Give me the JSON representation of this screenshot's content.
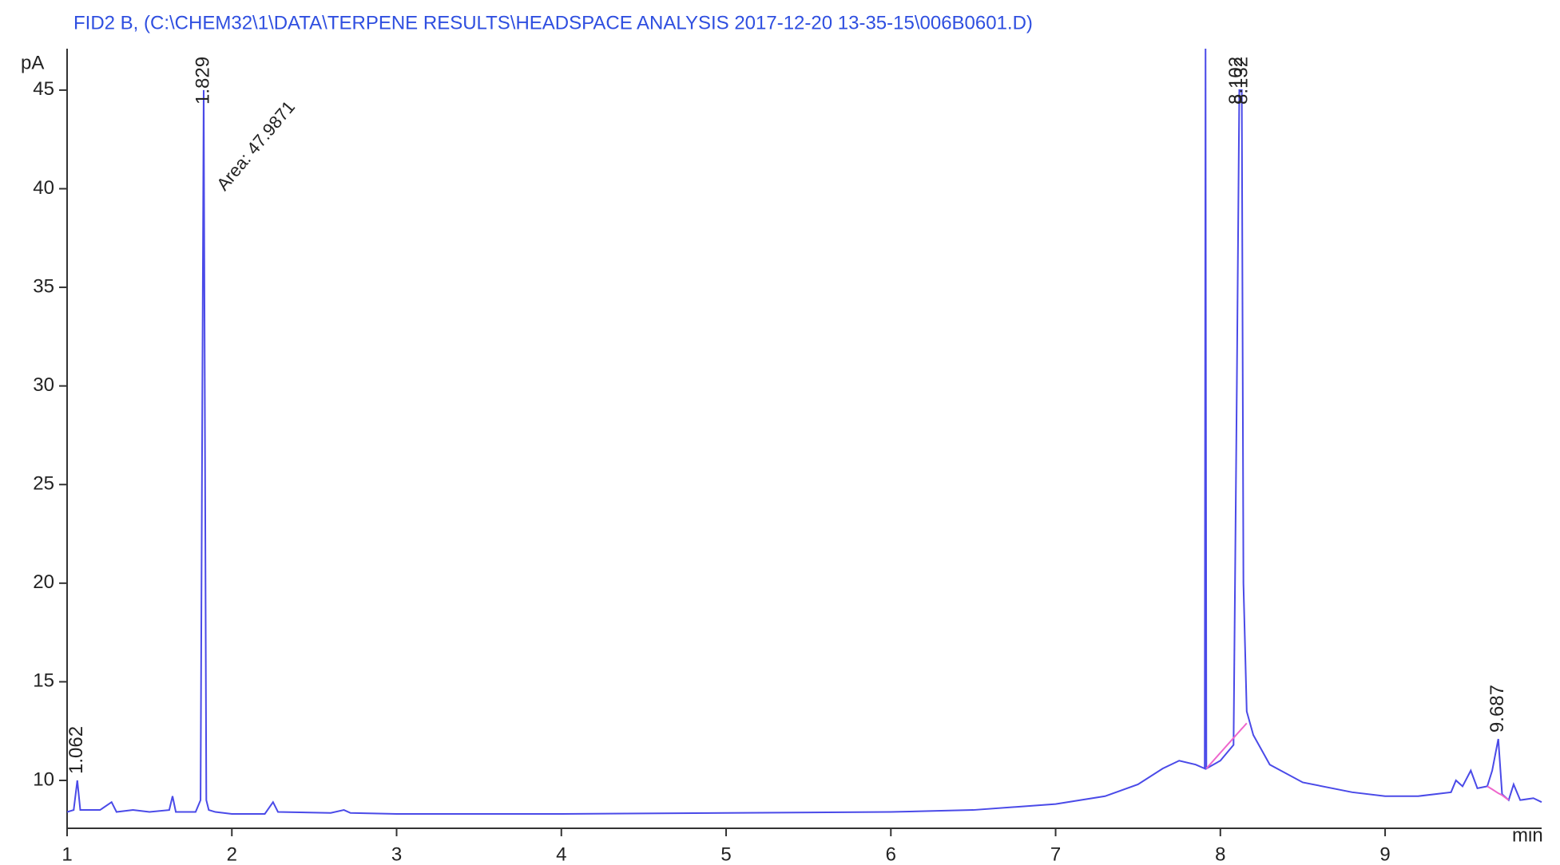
{
  "chart_data": {
    "type": "line",
    "title": "FID2 B,  (C:\\CHEM32\\1\\DATA\\TERPENE RESULTS\\HEADSPACE ANALYSIS 2017-12-20 13-35-15\\006B0601.D)",
    "ylabel": "pA",
    "xlabel": "min",
    "x": [
      1.0,
      1.04,
      1.062,
      1.08,
      1.2,
      1.27,
      1.3,
      1.4,
      1.5,
      1.62,
      1.64,
      1.66,
      1.78,
      1.81,
      1.829,
      1.845,
      1.86,
      1.9,
      2.0,
      2.2,
      2.25,
      2.28,
      2.6,
      2.68,
      2.72,
      3.0,
      4.0,
      5.0,
      6.0,
      6.5,
      7.0,
      7.3,
      7.5,
      7.65,
      7.75,
      7.85,
      7.905,
      7.91,
      7.915,
      8.0,
      8.08,
      8.1,
      8.115,
      8.13,
      8.14,
      8.16,
      8.2,
      8.3,
      8.5,
      8.8,
      9.0,
      9.2,
      9.4,
      9.43,
      9.47,
      9.52,
      9.56,
      9.62,
      9.65,
      9.687,
      9.71,
      9.75,
      9.78,
      9.82,
      9.9,
      9.95
    ],
    "series": [
      {
        "color": "#4a4ae8",
        "values": [
          8.4,
          8.5,
          10.0,
          8.5,
          8.5,
          8.9,
          8.4,
          8.5,
          8.4,
          8.5,
          9.2,
          8.4,
          8.4,
          9.0,
          45.0,
          9.0,
          8.5,
          8.4,
          8.3,
          8.3,
          8.9,
          8.4,
          8.35,
          8.5,
          8.35,
          8.3,
          8.3,
          8.35,
          8.4,
          8.5,
          8.8,
          9.2,
          9.8,
          10.6,
          11.0,
          10.8,
          10.6,
          47.1,
          10.6,
          11.0,
          11.8,
          30,
          45,
          45,
          20,
          13.5,
          12.3,
          10.8,
          9.9,
          9.4,
          9.2,
          9.2,
          9.4,
          10.0,
          9.7,
          10.5,
          9.6,
          9.7,
          10.5,
          12.1,
          9.3,
          9.0,
          9.8,
          9.0,
          9.1,
          8.9
        ]
      },
      {
        "color": "#ee66cc",
        "values": [
          null,
          null,
          null,
          null,
          null,
          null,
          null,
          null,
          null,
          null,
          null,
          null,
          null,
          null,
          null,
          null,
          null,
          null,
          null,
          null,
          null,
          null,
          null,
          null,
          null,
          null,
          null,
          null,
          null,
          null,
          null,
          null,
          null,
          null,
          null,
          null,
          null,
          null,
          10.6,
          11.4,
          12.15,
          12.34,
          12.48,
          12.62,
          12.71,
          12.9,
          null,
          null,
          null,
          null,
          null,
          null,
          null,
          null,
          null,
          null,
          null,
          9.7,
          9.55,
          9.35,
          9.25,
          9.0,
          null,
          null,
          null,
          null
        ]
      }
    ],
    "peak_labels": [
      "1.062",
      "1.829",
      "8.102",
      "8.132",
      "9.687"
    ],
    "area_annotation": "Area: 47.9871",
    "xlim": [
      1,
      9.95
    ],
    "ylim": [
      8.3,
      47.1
    ],
    "xticks": [
      1,
      2,
      3,
      4,
      5,
      6,
      7,
      8,
      9
    ],
    "yticks": [
      10,
      15,
      20,
      25,
      30,
      35,
      40,
      45
    ],
    "grid": false
  }
}
